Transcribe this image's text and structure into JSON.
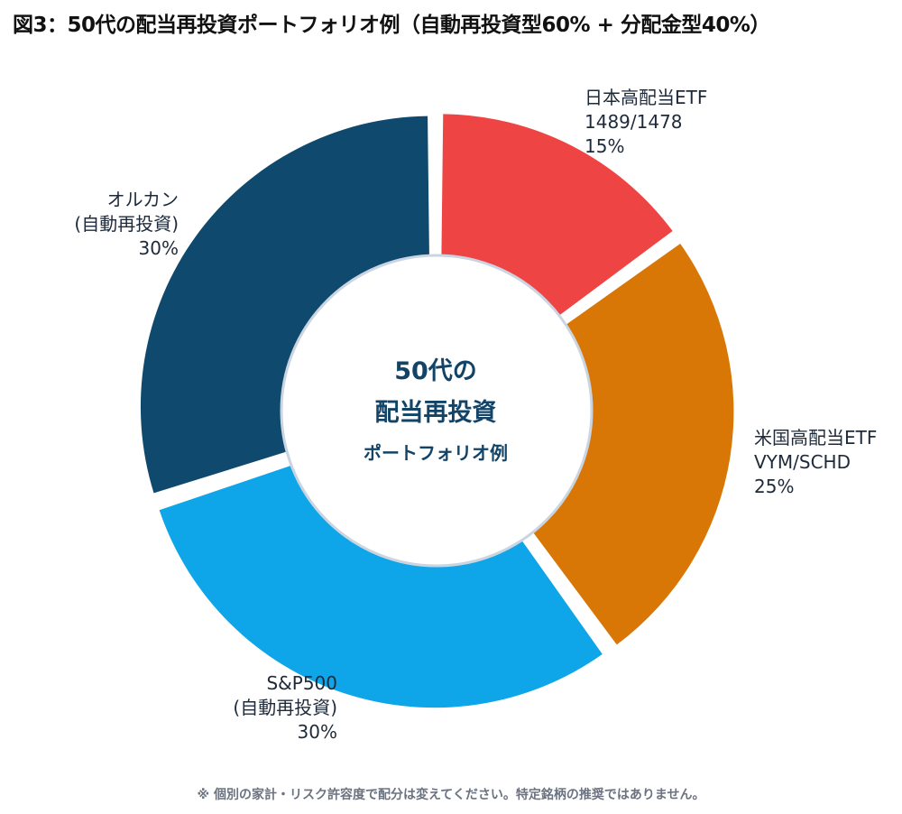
{
  "title": "図3：50代の配当再投資ポートフォリオ例（自動再投資型60% + 分配金型40%）",
  "center_text": {
    "line1": "50代の",
    "line2": "配当再投資",
    "line3": "ポートフォリオ例"
  },
  "note": "※ 個別の家計・リスク許容度で配分は変えてください。特定銘柄の推奨ではありません。",
  "chart_data": {
    "type": "pie",
    "variant": "donut",
    "slices": [
      {
        "label": "日本高配当ETF",
        "sub": "1489/1478",
        "value": 15,
        "value_label": "15%",
        "color": "#ef4444"
      },
      {
        "label": "米国高配当ETF",
        "sub": "VYM/SCHD",
        "value": 25,
        "value_label": "25%",
        "color": "#d97706"
      },
      {
        "label": "S&P500",
        "sub": "(自動再投資)",
        "value": 30,
        "value_label": "30%",
        "color": "#0ea5e9"
      },
      {
        "label": "オルカン",
        "sub": "(自動再投資)",
        "value": 30,
        "value_label": "30%",
        "color": "#0f4a6e"
      }
    ]
  }
}
